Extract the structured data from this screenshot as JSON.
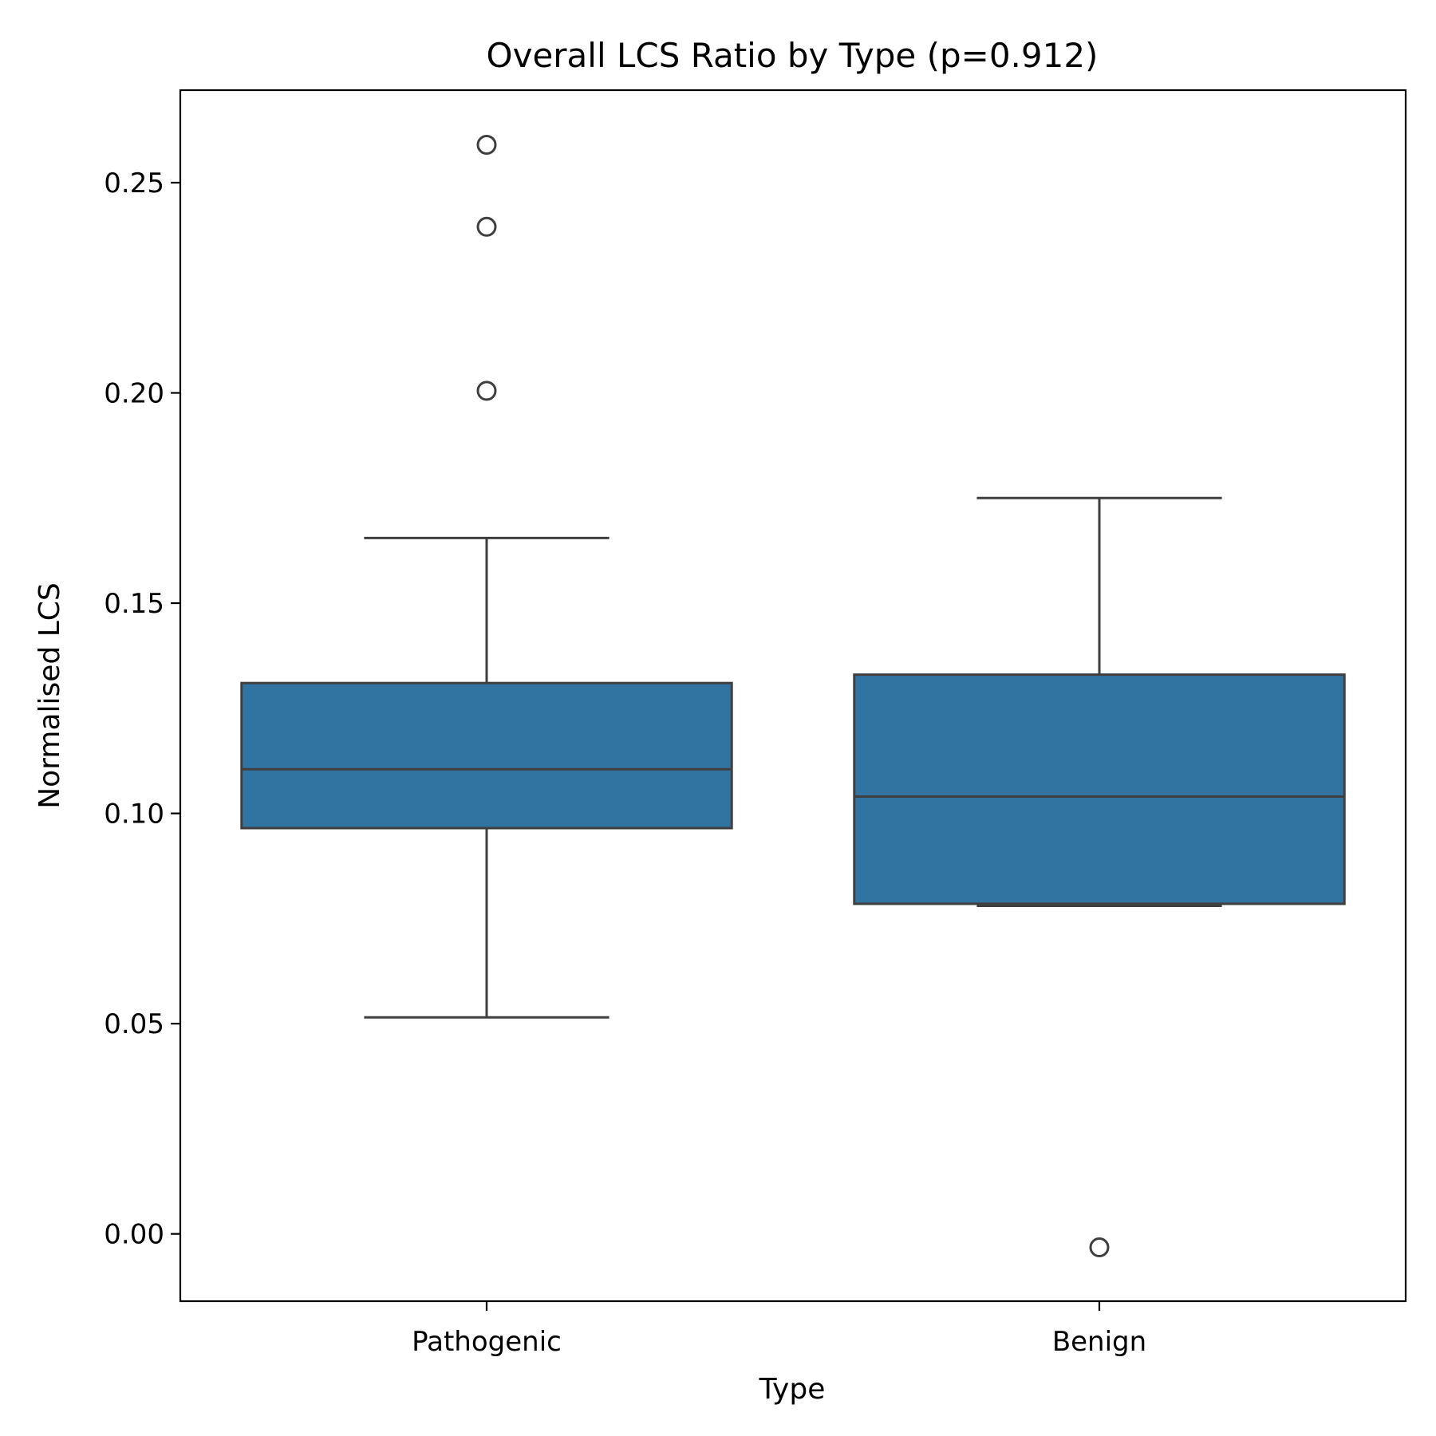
{
  "chart_data": {
    "type": "box",
    "title": "Overall LCS Ratio by Type (p=0.912)",
    "xlabel": "Type",
    "ylabel": "Normalised LCS",
    "ylim": [
      -0.016,
      0.272
    ],
    "yticks": [
      0.0,
      0.05,
      0.1,
      0.15,
      0.2,
      0.25
    ],
    "ytick_labels": [
      "0.00",
      "0.05",
      "0.10",
      "0.15",
      "0.20",
      "0.25"
    ],
    "categories": [
      "Pathogenic",
      "Benign"
    ],
    "grid": false,
    "legend": "none",
    "box_color": "#3274a1",
    "line_color": "#3f3f3f",
    "boxes": [
      {
        "category": "Pathogenic",
        "whisker_low": 0.0515,
        "q1": 0.0965,
        "median": 0.1105,
        "q3": 0.131,
        "whisker_high": 0.1655,
        "outliers": [
          0.2005,
          0.2395,
          0.259
        ]
      },
      {
        "category": "Benign",
        "whisker_low": 0.078,
        "q1": 0.0785,
        "median": 0.104,
        "q3": 0.133,
        "whisker_high": 0.175,
        "outliers": [
          -0.0032
        ]
      }
    ]
  }
}
